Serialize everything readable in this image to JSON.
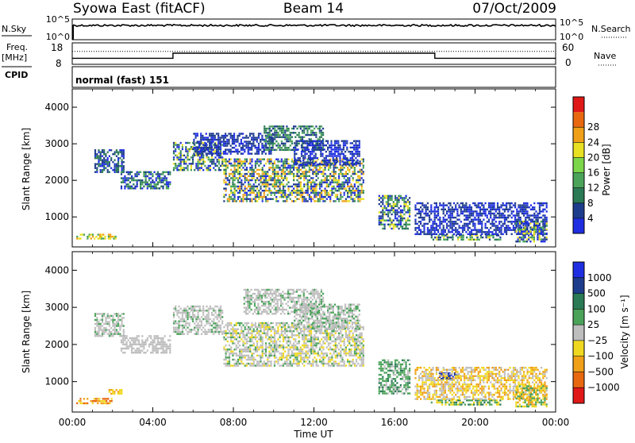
{
  "header": {
    "title_left": "Syowa East (fitACF)",
    "title_center": "Beam 14",
    "title_right": "07/Oct/2009"
  },
  "top_panels": {
    "nsky_label": "N.Sky",
    "nsky_ticks": [
      "10^5",
      "10^0"
    ],
    "nsearch_label": "N.Search",
    "freq_label": "Freq.",
    "freq_unit": "[MHz]",
    "freq_ticks": [
      "18",
      "8"
    ],
    "nave_label": "Nave",
    "nave_ticks": [
      "60",
      "0"
    ],
    "cpid_label": "CPID",
    "cpid_text": "normal (fast) 151"
  },
  "colors": {
    "power": [
      "#1f2ee0",
      "#1e3c8c",
      "#2b7a56",
      "#4ba35a",
      "#7cd64a",
      "#e8e022",
      "#f0a018",
      "#e86810",
      "#e01818"
    ],
    "velocity": [
      "#1e2ee0",
      "#1e3c8c",
      "#2b7a56",
      "#4ba35a",
      "#bebebe",
      "#f0d820",
      "#f0a018",
      "#e86810",
      "#e01818"
    ]
  },
  "chart_data": [
    {
      "type": "line",
      "name": "freq-nave",
      "x_range": [
        0,
        24
      ],
      "freq_ylim": [
        8,
        18
      ],
      "freq_series": [
        {
          "x": [
            0,
            5,
            5,
            18,
            18,
            24
          ],
          "y": [
            10.8,
            10.8,
            13.2,
            13.2,
            10.8,
            10.8
          ]
        }
      ],
      "nave_ylim": [
        0,
        60
      ],
      "nave_series": [
        {
          "x": [
            0,
            24
          ],
          "y": [
            36,
            36
          ]
        }
      ]
    },
    {
      "type": "heatmap",
      "name": "power",
      "ylabel": "Slant Range [km]",
      "ylim": [
        180,
        4500
      ],
      "yticks": [
        "1000",
        "2000",
        "3000",
        "4000"
      ],
      "x_range": [
        0,
        24
      ],
      "colorbar_label": "Power [dB]",
      "colorbar_ticks": [
        "4",
        "8",
        "12",
        "16",
        "20",
        "24",
        "28"
      ],
      "regions": [
        {
          "t0": 0.2,
          "t1": 2.2,
          "r0": 380,
          "r1": 540,
          "c": [
            5,
            6,
            3
          ]
        },
        {
          "t0": 1.1,
          "t1": 2.6,
          "r0": 2200,
          "r1": 2850,
          "c": [
            0,
            1,
            2
          ]
        },
        {
          "t0": 2.4,
          "t1": 4.9,
          "r0": 1750,
          "r1": 2250,
          "c": [
            0,
            1,
            2,
            3
          ]
        },
        {
          "t0": 5.0,
          "t1": 7.5,
          "r0": 2250,
          "r1": 3050,
          "c": [
            0,
            1,
            2,
            3,
            5
          ]
        },
        {
          "t0": 6.0,
          "t1": 10.0,
          "r0": 2700,
          "r1": 3300,
          "c": [
            0,
            1
          ]
        },
        {
          "t0": 7.5,
          "t1": 14.5,
          "r0": 1400,
          "r1": 2600,
          "c": [
            0,
            1,
            2,
            3,
            5,
            6
          ]
        },
        {
          "t0": 9.5,
          "t1": 12.5,
          "r0": 2800,
          "r1": 3500,
          "c": [
            1,
            2,
            3
          ]
        },
        {
          "t0": 11.0,
          "t1": 14.3,
          "r0": 2400,
          "r1": 3100,
          "c": [
            0,
            1
          ]
        },
        {
          "t0": 15.2,
          "t1": 16.8,
          "r0": 650,
          "r1": 1600,
          "c": [
            0,
            1,
            2,
            3,
            5
          ]
        },
        {
          "t0": 17.8,
          "t1": 21.3,
          "r0": 350,
          "r1": 520,
          "c": [
            1,
            2,
            3,
            5
          ]
        },
        {
          "t0": 17.0,
          "t1": 23.6,
          "r0": 500,
          "r1": 1400,
          "c": [
            0,
            1
          ]
        },
        {
          "t0": 22.0,
          "t1": 23.6,
          "r0": 300,
          "r1": 900,
          "c": [
            0,
            1,
            3,
            5
          ]
        }
      ]
    },
    {
      "type": "heatmap",
      "name": "velocity",
      "ylabel": "Slant Range [km]",
      "ylim": [
        180,
        4500
      ],
      "yticks": [
        "1000",
        "2000",
        "3000",
        "4000"
      ],
      "x_range": [
        0,
        24
      ],
      "colorbar_label": "Velocity [m s⁻¹]",
      "colorbar_ticks": [
        "1000",
        "500",
        "100",
        "25",
        "−25",
        "−100",
        "−500",
        "−1000"
      ],
      "regions": [
        {
          "t0": 0.2,
          "t1": 2.0,
          "r0": 380,
          "r1": 560,
          "c": [
            6,
            7,
            5
          ]
        },
        {
          "t0": 1.8,
          "t1": 2.5,
          "r0": 650,
          "r1": 800,
          "c": [
            5,
            6
          ]
        },
        {
          "t0": 1.1,
          "t1": 2.6,
          "r0": 2200,
          "r1": 2850,
          "c": [
            4,
            4,
            4,
            3
          ]
        },
        {
          "t0": 2.4,
          "t1": 4.9,
          "r0": 1750,
          "r1": 2250,
          "c": [
            4,
            4,
            4
          ]
        },
        {
          "t0": 5.0,
          "t1": 7.5,
          "r0": 2250,
          "r1": 3050,
          "c": [
            4,
            4,
            4,
            3
          ]
        },
        {
          "t0": 7.5,
          "t1": 14.5,
          "r0": 1400,
          "r1": 2600,
          "c": [
            4,
            4,
            4,
            3,
            5
          ]
        },
        {
          "t0": 8.5,
          "t1": 12.5,
          "r0": 2800,
          "r1": 3500,
          "c": [
            4,
            4,
            4,
            3
          ]
        },
        {
          "t0": 11.0,
          "t1": 14.3,
          "r0": 2400,
          "r1": 3100,
          "c": [
            4,
            4,
            3
          ]
        },
        {
          "t0": 15.2,
          "t1": 16.8,
          "r0": 650,
          "r1": 1600,
          "c": [
            3,
            3,
            2,
            4
          ]
        },
        {
          "t0": 18.2,
          "t1": 19.2,
          "r0": 1050,
          "r1": 1250,
          "c": [
            0,
            1
          ]
        },
        {
          "t0": 17.8,
          "t1": 21.3,
          "r0": 350,
          "r1": 520,
          "c": [
            2,
            3,
            5
          ]
        },
        {
          "t0": 17.0,
          "t1": 23.6,
          "r0": 500,
          "r1": 1400,
          "c": [
            4,
            5,
            6
          ]
        },
        {
          "t0": 22.0,
          "t1": 23.6,
          "r0": 300,
          "r1": 900,
          "c": [
            3,
            5,
            6
          ]
        }
      ]
    }
  ],
  "x_axis": {
    "ticks": [
      "00:00",
      "04:00",
      "08:00",
      "12:00",
      "16:00",
      "20:00",
      "00:00"
    ],
    "label": "Time UT"
  }
}
